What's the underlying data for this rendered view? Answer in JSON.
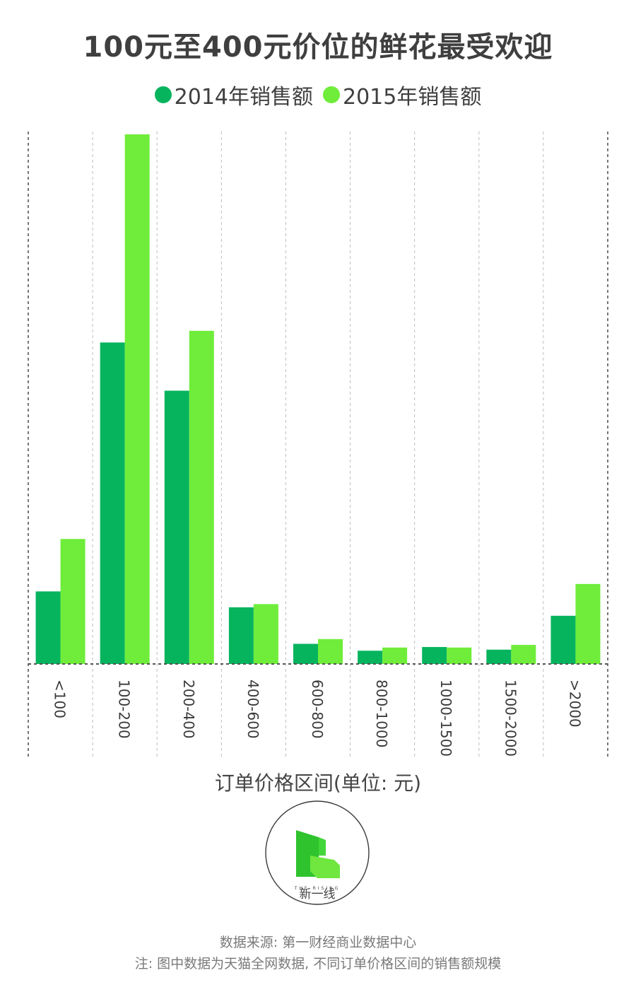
{
  "title": "100元至400元价位的鲜花最受欢迎",
  "legend": {
    "items": [
      {
        "label": "2014年销售额",
        "color": "#07b45e"
      },
      {
        "label": "2015年销售额",
        "color": "#6fed3a"
      }
    ]
  },
  "chart_data": {
    "type": "bar",
    "title": "100元至400元价位的鲜花最受欢迎",
    "xlabel": "订单价格区间(单位: 元)",
    "ylabel": "",
    "categories": [
      "<100",
      "100-200",
      "200-400",
      "400-600",
      "600-800",
      "800-1000",
      "1000-1500",
      "1500-2000",
      ">2000"
    ],
    "series": [
      {
        "name": "2014年销售额",
        "color": "#07b45e",
        "values": [
          13.7,
          60.7,
          51.6,
          10.7,
          3.8,
          2.5,
          3.2,
          2.7,
          9.1
        ]
      },
      {
        "name": "2015年销售额",
        "color": "#6fed3a",
        "values": [
          23.6,
          100,
          62.9,
          11.3,
          4.7,
          3.1,
          3.1,
          3.6,
          15.1
        ]
      }
    ],
    "ylim": [
      0,
      100
    ],
    "grid": "vertical dashed separators",
    "legend_position": "top-center"
  },
  "axis_title": "订单价格区间(单位: 元)",
  "logo": {
    "tagline": "THE RISING",
    "name": "新一线"
  },
  "footer": {
    "source": "数据来源: 第一财经商业数据中心",
    "note": "注: 图中数据为天猫全网数据, 不同订单价格区间的销售额规模"
  }
}
